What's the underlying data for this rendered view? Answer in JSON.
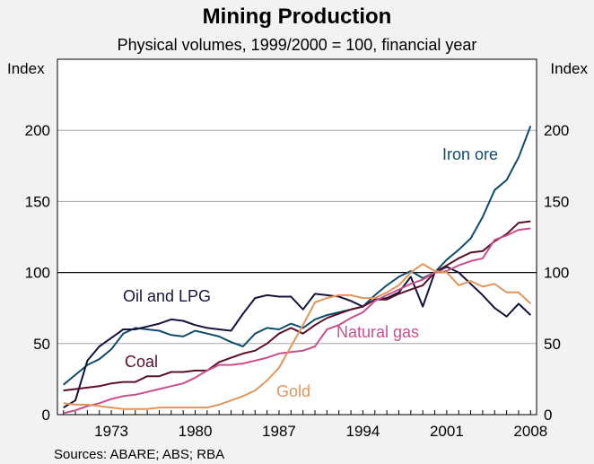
{
  "chart_data": {
    "type": "line",
    "title": "Mining Production",
    "subtitle": "Physical volumes, 1999/2000 = 100, financial year",
    "ylabel_left": "Index",
    "ylabel_right": "Index",
    "source": "Sources: ABARE; ABS; RBA",
    "ylim": [
      0,
      250
    ],
    "yticks": [
      0,
      50,
      100,
      150,
      200
    ],
    "xlim": [
      1968.5,
      2008.5
    ],
    "xticks": [
      1973,
      1980,
      1987,
      1994,
      2001,
      2008
    ],
    "x": [
      1969,
      1970,
      1971,
      1972,
      1973,
      1974,
      1975,
      1976,
      1977,
      1978,
      1979,
      1980,
      1981,
      1982,
      1983,
      1984,
      1985,
      1986,
      1987,
      1988,
      1989,
      1990,
      1991,
      1992,
      1993,
      1994,
      1995,
      1996,
      1997,
      1998,
      1999,
      2000,
      2001,
      2002,
      2003,
      2004,
      2005,
      2006,
      2007,
      2008
    ],
    "series": [
      {
        "name": "Iron ore",
        "color": "#0e4c6b",
        "values": [
          21,
          28,
          35,
          39,
          46,
          57,
          61,
          60,
          59,
          56,
          55,
          59,
          57,
          55,
          51,
          48,
          57,
          61,
          60,
          64,
          61,
          67,
          70,
          72,
          74,
          76,
          84,
          91,
          97,
          101,
          96,
          100,
          109,
          116,
          124,
          139,
          158,
          165,
          181,
          203
        ]
      },
      {
        "name": "Oil and LPG",
        "color": "#14143c",
        "values": [
          5,
          10,
          38,
          48,
          54,
          60,
          60,
          62,
          64,
          67,
          66,
          63,
          61,
          60,
          59,
          71,
          82,
          84,
          83,
          83,
          74,
          85,
          84,
          83,
          80,
          76,
          81,
          82,
          86,
          97,
          76,
          100,
          104,
          100,
          92,
          84,
          75,
          69,
          78,
          70
        ]
      },
      {
        "name": "Coal",
        "color": "#5a0f28",
        "values": [
          17,
          18,
          19,
          20,
          22,
          23,
          23,
          27,
          27,
          30,
          30,
          31,
          31,
          37,
          40,
          43,
          45,
          50,
          57,
          61,
          57,
          63,
          68,
          71,
          74,
          76,
          81,
          81,
          85,
          88,
          91,
          100,
          105,
          110,
          114,
          115,
          122,
          127,
          135,
          136
        ]
      },
      {
        "name": "Natural gas",
        "color": "#c8508c",
        "values": [
          1,
          3,
          6,
          8,
          11,
          13,
          14,
          16,
          18,
          20,
          22,
          26,
          31,
          35,
          35,
          36,
          38,
          40,
          43,
          44,
          45,
          48,
          60,
          63,
          68,
          72,
          80,
          84,
          88,
          92,
          95,
          100,
          101,
          105,
          108,
          110,
          123,
          126,
          130,
          131
        ]
      },
      {
        "name": "Gold",
        "color": "#e0955a",
        "values": [
          8,
          7,
          7,
          6,
          5,
          4,
          4,
          4,
          5,
          5,
          5,
          5,
          5,
          7,
          10,
          13,
          17,
          24,
          33,
          48,
          63,
          79,
          82,
          84,
          84,
          82,
          82,
          86,
          91,
          100,
          106,
          101,
          100,
          91,
          94,
          90,
          92,
          86,
          86,
          78
        ]
      }
    ],
    "labels": [
      "Iron ore",
      "Oil and LPG",
      "Coal",
      "Natural gas",
      "Gold"
    ]
  }
}
